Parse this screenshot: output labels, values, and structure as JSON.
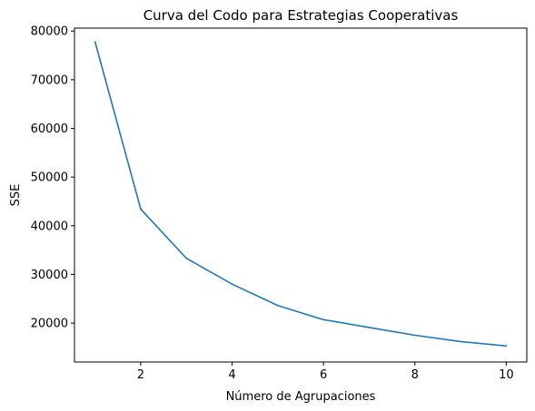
{
  "chart_data": {
    "type": "line",
    "title": "Curva del Codo para Estrategias Cooperativas",
    "xlabel": "Número de Agrupaciones",
    "ylabel": "SSE",
    "xlim": [
      0.55,
      10.45
    ],
    "ylim": [
      12000,
      80600
    ],
    "xticks": [
      2,
      4,
      6,
      8,
      10
    ],
    "yticks": [
      20000,
      30000,
      40000,
      50000,
      60000,
      70000,
      80000
    ],
    "grid": false,
    "series": [
      {
        "color": "#1f77b4",
        "x": [
          1,
          2,
          3,
          4,
          5,
          6,
          7,
          8,
          9,
          10
        ],
        "y": [
          77800,
          43400,
          33300,
          28000,
          23600,
          20700,
          19100,
          17500,
          16200,
          15300
        ]
      }
    ]
  }
}
